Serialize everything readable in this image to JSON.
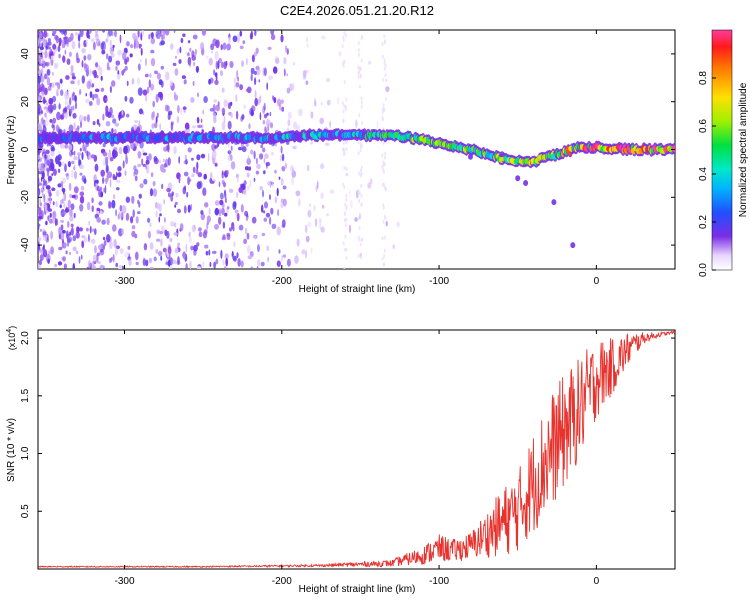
{
  "title": "C2E4.2026.051.21.20.R12",
  "colors": {
    "snr_line": "#e8322d",
    "ridge_bg": "#5a1fe0",
    "scatter": "#6a2be8"
  },
  "chart_data": [
    {
      "type": "heatmap",
      "xlabel": "Height of straight line (km)",
      "ylabel": "Frequency (Hz)",
      "xlim": [
        -355,
        50
      ],
      "ylim": [
        -50,
        50
      ],
      "xticks": [
        -300,
        -200,
        -100,
        0
      ],
      "xtick_labels": [
        "-300",
        "-200",
        "-100",
        "0"
      ],
      "yticks": [
        -40,
        -20,
        0,
        20,
        40
      ],
      "ytick_labels": [
        "-40",
        "-20",
        "0",
        "20",
        "40"
      ],
      "colorbar": {
        "label": "Normalized spectral amplitude",
        "ticks": [
          0.0,
          0.2,
          0.4,
          0.6,
          0.8
        ],
        "tick_labels": [
          "0.0",
          "0.2",
          "0.4",
          "0.6",
          "0.8"
        ],
        "range": [
          0,
          1
        ]
      },
      "ridge": {
        "x": [
          -355,
          -300,
          -250,
          -200,
          -180,
          -150,
          -130,
          -110,
          -95,
          -80,
          -65,
          -50,
          -40,
          -30,
          -20,
          -10,
          0,
          20,
          50
        ],
        "y": [
          5,
          5,
          5,
          5,
          6,
          6,
          6,
          4,
          2,
          0,
          -3,
          -5,
          -5,
          -3,
          -1,
          1,
          1,
          0,
          0
        ],
        "amplitude": [
          0.3,
          0.35,
          0.35,
          0.4,
          0.45,
          0.5,
          0.55,
          0.6,
          0.65,
          0.6,
          0.6,
          0.65,
          0.7,
          0.75,
          0.8,
          0.85,
          0.9,
          0.95,
          0.95
        ]
      }
    },
    {
      "type": "line",
      "xlabel": "Height of straight line (km)",
      "ylabel": "SNR (10 * v/v)",
      "y_multiplier": "(x10",
      "y_multiplier_exp": "4",
      "y_multiplier_close": ")",
      "xlim": [
        -355,
        50
      ],
      "ylim": [
        0,
        2.07
      ],
      "xticks": [
        -300,
        -200,
        -100,
        0
      ],
      "xtick_labels": [
        "-300",
        "-200",
        "-100",
        "0"
      ],
      "yticks": [
        0.5,
        1.0,
        1.5,
        2.0
      ],
      "ytick_labels": [
        "0.5",
        "1.0",
        "1.5",
        "2.0"
      ],
      "series": [
        {
          "x": [
            -355,
            -250,
            -175,
            -130,
            -110,
            -100,
            -90,
            -80,
            -70,
            -60,
            -50,
            -40,
            -30,
            -20,
            -10,
            0,
            10,
            20,
            30,
            40,
            50
          ],
          "y": [
            0.02,
            0.02,
            0.03,
            0.05,
            0.12,
            0.18,
            0.16,
            0.2,
            0.3,
            0.4,
            0.5,
            0.75,
            1.0,
            1.2,
            1.4,
            1.65,
            1.75,
            1.9,
            2.0,
            2.03,
            2.05
          ],
          "noise": [
            0.005,
            0.005,
            0.01,
            0.03,
            0.08,
            0.12,
            0.1,
            0.12,
            0.2,
            0.3,
            0.35,
            0.45,
            0.5,
            0.5,
            0.45,
            0.35,
            0.25,
            0.15,
            0.05,
            0.02,
            0.01
          ]
        }
      ]
    }
  ]
}
